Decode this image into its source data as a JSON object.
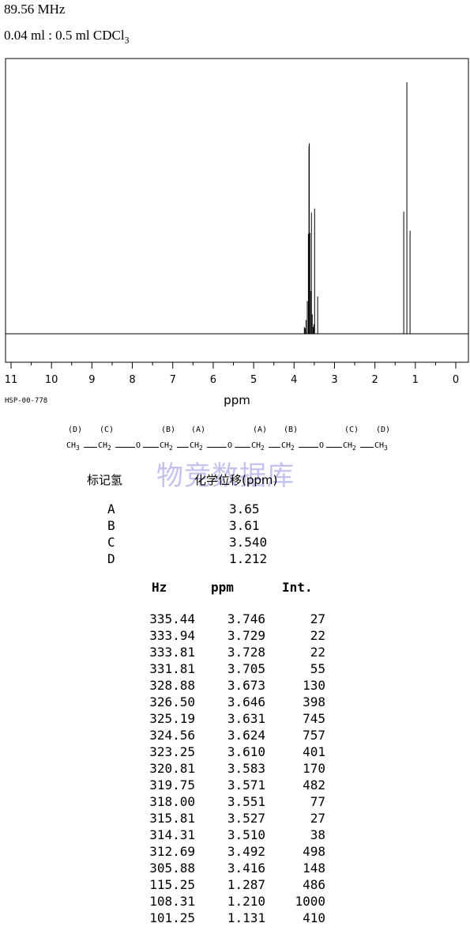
{
  "header": {
    "frequency": "89.56 MHz",
    "sample_prefix": "0.04 ml : 0.5 ml CDCl",
    "sample_sub": "3"
  },
  "code": "HSP-00-778",
  "structure": {
    "labels": [
      "(D)",
      "(C)",
      "(B)",
      "(A)",
      "(A)",
      "(B)",
      "(C)",
      "(D)"
    ],
    "groups": [
      "CH3",
      "CH2",
      "O",
      "CH2",
      "CH2",
      "O",
      "CH2",
      "CH2",
      "O",
      "CH2",
      "CH3"
    ]
  },
  "watermark": "物竞数据库",
  "assign": {
    "col1": "标记氢",
    "col2": "化学位移(ppm)",
    "rows": [
      {
        "label": "A",
        "shift": "3.65"
      },
      {
        "label": "B",
        "shift": "3.61"
      },
      {
        "label": "C",
        "shift": "3.540"
      },
      {
        "label": "D",
        "shift": "1.212"
      }
    ]
  },
  "peaks": {
    "headers": {
      "hz": "Hz",
      "ppm": "ppm",
      "int": "Int."
    },
    "rows": [
      {
        "hz": "335.44",
        "ppm": "3.746",
        "int": "27"
      },
      {
        "hz": "333.94",
        "ppm": "3.729",
        "int": "22"
      },
      {
        "hz": "333.81",
        "ppm": "3.728",
        "int": "22"
      },
      {
        "hz": "331.81",
        "ppm": "3.705",
        "int": "55"
      },
      {
        "hz": "328.88",
        "ppm": "3.673",
        "int": "130"
      },
      {
        "hz": "326.50",
        "ppm": "3.646",
        "int": "398"
      },
      {
        "hz": "325.19",
        "ppm": "3.631",
        "int": "745"
      },
      {
        "hz": "324.56",
        "ppm": "3.624",
        "int": "757"
      },
      {
        "hz": "323.25",
        "ppm": "3.610",
        "int": "401"
      },
      {
        "hz": "320.81",
        "ppm": "3.583",
        "int": "170"
      },
      {
        "hz": "319.75",
        "ppm": "3.571",
        "int": "482"
      },
      {
        "hz": "318.00",
        "ppm": "3.551",
        "int": "77"
      },
      {
        "hz": "315.81",
        "ppm": "3.527",
        "int": "27"
      },
      {
        "hz": "314.31",
        "ppm": "3.510",
        "int": "38"
      },
      {
        "hz": "312.69",
        "ppm": "3.492",
        "int": "498"
      },
      {
        "hz": "305.88",
        "ppm": "3.416",
        "int": "148"
      },
      {
        "hz": "115.25",
        "ppm": "1.287",
        "int": "486"
      },
      {
        "hz": "108.31",
        "ppm": "1.210",
        "int": "1000"
      },
      {
        "hz": "101.25",
        "ppm": "1.131",
        "int": "410"
      }
    ]
  },
  "chart_data": {
    "type": "line",
    "title": "",
    "xlabel": "ppm",
    "ylabel": "",
    "xlim": [
      11,
      0
    ],
    "x_ticks": [
      11,
      10,
      9,
      8,
      7,
      6,
      5,
      4,
      3,
      2,
      1,
      0
    ],
    "x_reversed": true,
    "grid": false,
    "peaks": [
      {
        "ppm": 3.746,
        "int": 27
      },
      {
        "ppm": 3.729,
        "int": 22
      },
      {
        "ppm": 3.728,
        "int": 22
      },
      {
        "ppm": 3.705,
        "int": 55
      },
      {
        "ppm": 3.673,
        "int": 130
      },
      {
        "ppm": 3.646,
        "int": 398
      },
      {
        "ppm": 3.631,
        "int": 745
      },
      {
        "ppm": 3.624,
        "int": 757
      },
      {
        "ppm": 3.61,
        "int": 401
      },
      {
        "ppm": 3.583,
        "int": 170
      },
      {
        "ppm": 3.571,
        "int": 482
      },
      {
        "ppm": 3.551,
        "int": 77
      },
      {
        "ppm": 3.527,
        "int": 27
      },
      {
        "ppm": 3.51,
        "int": 38
      },
      {
        "ppm": 3.492,
        "int": 498
      },
      {
        "ppm": 3.416,
        "int": 148
      },
      {
        "ppm": 1.287,
        "int": 486
      },
      {
        "ppm": 1.21,
        "int": 1000
      },
      {
        "ppm": 1.131,
        "int": 410
      }
    ],
    "line_color": "#000000"
  }
}
